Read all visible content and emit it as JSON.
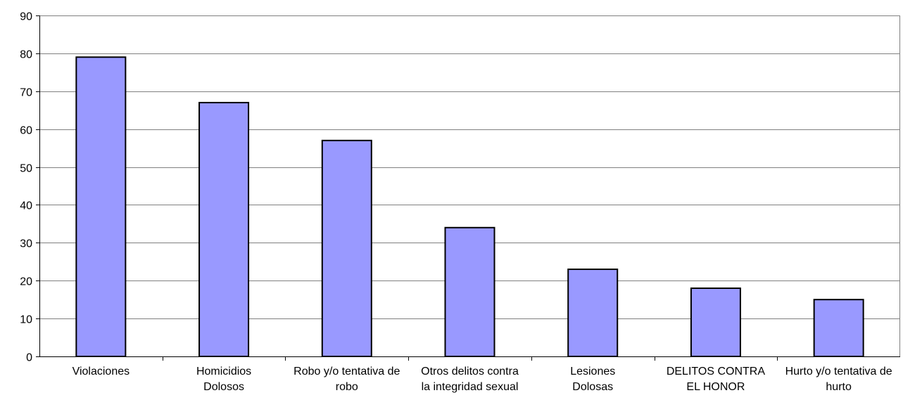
{
  "chart_data": {
    "type": "bar",
    "title": "",
    "xlabel": "",
    "ylabel": "",
    "categories": [
      [
        "Violaciones"
      ],
      [
        "Homicidios",
        "Dolosos"
      ],
      [
        "Robo y/o tentativa de",
        "robo"
      ],
      [
        "Otros delitos contra",
        "la integridad sexual"
      ],
      [
        "Lesiones",
        "Dolosas"
      ],
      [
        "DELITOS CONTRA",
        "EL HONOR"
      ],
      [
        "Hurto y/o tentativa de",
        "hurto"
      ]
    ],
    "values": [
      79,
      67,
      57,
      34,
      23,
      18,
      15
    ],
    "ylim": [
      0,
      90
    ],
    "yticks": [
      "0",
      "10",
      "20",
      "30",
      "40",
      "50",
      "60",
      "70",
      "80",
      "90"
    ],
    "grid": true,
    "legend": "none",
    "bar_color": "#9999ff",
    "bar_stroke": "#000000",
    "grid_color": "#808080"
  }
}
